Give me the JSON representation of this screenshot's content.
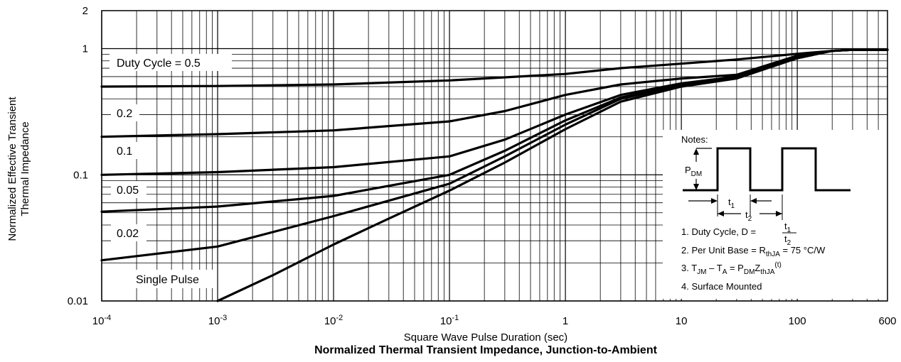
{
  "chart_data": {
    "type": "line",
    "title": "Normalized Thermal Transient Impedance, Junction-to-Ambient",
    "xlabel": "Square Wave Pulse Duration (sec)",
    "ylabel_lines": [
      "Normalized Effective Transient",
      "Thermal Impedance"
    ],
    "xscale": "log",
    "yscale": "log",
    "xlim": [
      0.0001,
      600
    ],
    "ylim": [
      0.01,
      2
    ],
    "grid": true,
    "x_ticks": [
      {
        "base": "10",
        "exp": "-4"
      },
      {
        "base": "10",
        "exp": "-3"
      },
      {
        "base": "10",
        "exp": "-2"
      },
      {
        "base": "10",
        "exp": "-1"
      },
      {
        "base": "1",
        "exp": ""
      },
      {
        "base": "10",
        "exp": ""
      },
      {
        "base": "100",
        "exp": ""
      },
      {
        "base": "600",
        "exp": ""
      }
    ],
    "y_ticks": [
      "0.01",
      "0.1",
      "1",
      "2"
    ],
    "series": [
      {
        "name": "Duty Cycle = 0.5",
        "x": [
          0.0001,
          0.001,
          0.01,
          0.1,
          1,
          3,
          10,
          30,
          100,
          200,
          300,
          600
        ],
        "y": [
          0.5,
          0.505,
          0.52,
          0.56,
          0.63,
          0.7,
          0.76,
          0.82,
          0.91,
          0.96,
          0.98,
          0.98
        ]
      },
      {
        "name": "0.2",
        "x": [
          0.0001,
          0.001,
          0.01,
          0.1,
          0.3,
          1,
          3,
          10,
          30,
          100,
          200,
          300,
          600
        ],
        "y": [
          0.2,
          0.21,
          0.225,
          0.265,
          0.32,
          0.43,
          0.52,
          0.58,
          0.62,
          0.88,
          0.96,
          0.98,
          0.98
        ]
      },
      {
        "name": "0.1",
        "x": [
          0.0001,
          0.001,
          0.01,
          0.1,
          0.3,
          1,
          3,
          10,
          30,
          100,
          200,
          300,
          600
        ],
        "y": [
          0.1,
          0.105,
          0.115,
          0.14,
          0.19,
          0.3,
          0.43,
          0.53,
          0.6,
          0.87,
          0.96,
          0.98,
          0.98
        ]
      },
      {
        "name": "0.05",
        "x": [
          0.0001,
          0.001,
          0.01,
          0.1,
          0.3,
          1,
          3,
          10,
          30,
          100,
          200,
          300,
          600
        ],
        "y": [
          0.051,
          0.056,
          0.068,
          0.1,
          0.155,
          0.27,
          0.41,
          0.52,
          0.6,
          0.86,
          0.96,
          0.98,
          0.98
        ]
      },
      {
        "name": "0.02",
        "x": [
          0.0001,
          0.001,
          0.01,
          0.1,
          0.3,
          1,
          3,
          10,
          30,
          100,
          200,
          300,
          600
        ],
        "y": [
          0.021,
          0.027,
          0.047,
          0.085,
          0.14,
          0.25,
          0.4,
          0.51,
          0.59,
          0.85,
          0.96,
          0.98,
          0.98
        ]
      },
      {
        "name": "Single Pulse",
        "x": [
          0.001,
          0.003,
          0.01,
          0.03,
          0.1,
          0.3,
          1,
          3,
          10,
          30,
          100,
          200,
          300,
          600
        ],
        "y": [
          0.01,
          0.016,
          0.028,
          0.045,
          0.075,
          0.125,
          0.23,
          0.38,
          0.5,
          0.58,
          0.84,
          0.96,
          0.98,
          0.98
        ]
      }
    ],
    "curve_labels": [
      "Duty Cycle = 0.5",
      "0.2",
      "0.1",
      "0.05",
      "0.02",
      "Single Pulse"
    ]
  },
  "notes": {
    "header": "Notes:",
    "pdm": "P",
    "pdm_sub": "DM",
    "t1": "t",
    "t1_sub": "1",
    "t2": "t",
    "t2_sub": "2",
    "note1": "1. Duty Cycle, D =",
    "note1_num": "t",
    "note1_num_sub": "1",
    "note1_den": "t",
    "note1_den_sub": "2",
    "note2_pre": "2. Per Unit Base = R",
    "note2_sub": "thJA",
    "note2_post": " = 75 °C/W",
    "note3_a": "3. T",
    "note3_a_sub": "JM",
    "note3_b": " – T",
    "note3_b_sub": "A",
    "note3_c": " = P",
    "note3_c_sub": "DM",
    "note3_d": "Z",
    "note3_d_sub": "thJA",
    "note3_e_sup": "(t)",
    "note4": "4. Surface Mounted"
  }
}
